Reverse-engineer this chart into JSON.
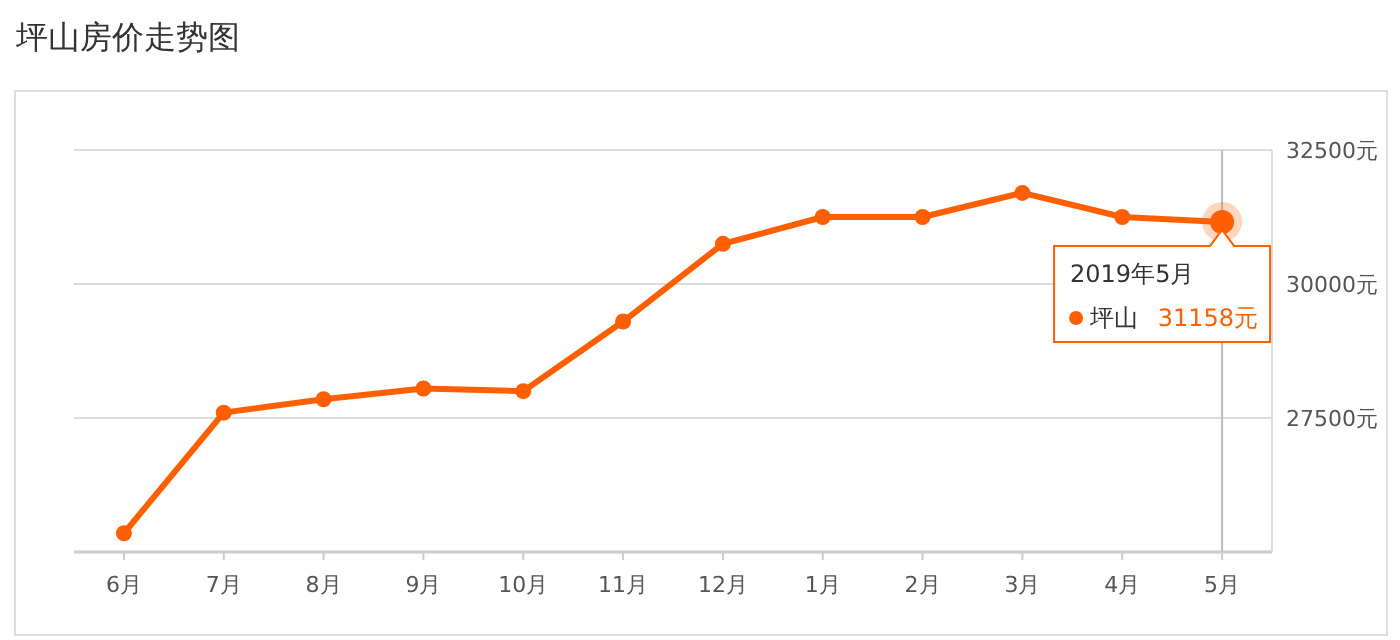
{
  "chart_data": {
    "type": "line",
    "title": "坪山房价走势图",
    "categories": [
      "6月",
      "7月",
      "8月",
      "9月",
      "10月",
      "11月",
      "12月",
      "1月",
      "2月",
      "3月",
      "4月",
      "5月"
    ],
    "series": [
      {
        "name": "坪山",
        "color": "#ff5f00",
        "values": [
          25350,
          27600,
          27850,
          28050,
          28000,
          29300,
          30750,
          31250,
          31250,
          31700,
          31250,
          31158
        ],
        "value_labels": [
          null,
          null,
          null,
          null,
          null,
          null,
          null,
          null,
          null,
          null,
          null,
          "31158元"
        ]
      }
    ],
    "ylim": [
      25000,
      32500
    ],
    "yticks": [
      {
        "value": 25000,
        "label": null
      },
      {
        "value": 27500,
        "label": "27500元"
      },
      {
        "value": 30000,
        "label": "30000元"
      },
      {
        "value": 32500,
        "label": "32500元"
      }
    ],
    "grid": "y",
    "marker": "circle",
    "line_style": "solid",
    "ref_lines": [
      {
        "axis": "x",
        "value": "5月",
        "color": "#bbbbbb"
      }
    ],
    "annotations": [
      {
        "text": "2019年5月",
        "x": "5月",
        "y": 31158
      }
    ]
  }
}
